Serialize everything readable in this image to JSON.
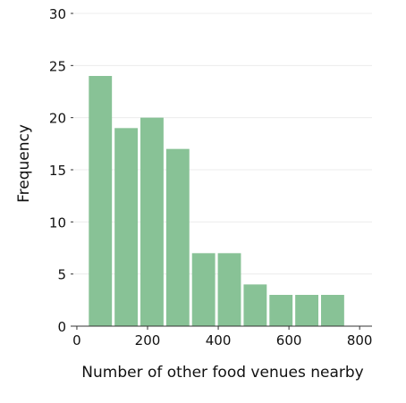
{
  "chart_data": {
    "type": "bar",
    "title": "",
    "xlabel": "Number of other food venues nearby",
    "ylabel": "Frequency",
    "bin_edges": [
      30,
      103,
      176,
      249,
      322,
      395,
      468,
      541,
      614,
      687,
      760
    ],
    "values": [
      24,
      19,
      20,
      17,
      7,
      7,
      4,
      3,
      3,
      3
    ],
    "xlim": [
      -10,
      835
    ],
    "ylim": [
      0,
      30
    ],
    "x_ticks": [
      0,
      200,
      400,
      600,
      800
    ],
    "x_tick_labels": [
      "0",
      "200",
      "400",
      "600",
      "800"
    ],
    "y_ticks": [
      0,
      5,
      10,
      15,
      20,
      25,
      30
    ],
    "y_tick_labels": [
      "0",
      "5",
      "10",
      "15",
      "20",
      "25",
      "30"
    ],
    "grid": "horizontal",
    "bar_color": "#88c296",
    "grid_color": "#ececec",
    "axis_color": "#333333"
  }
}
